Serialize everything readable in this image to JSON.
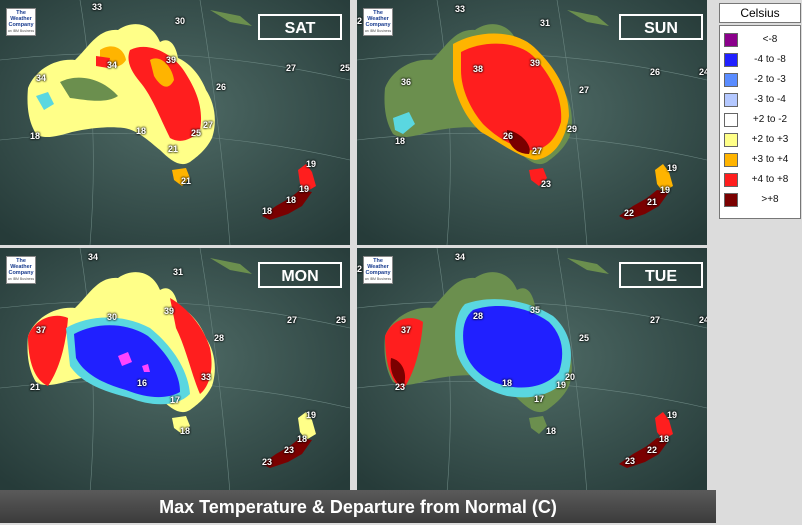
{
  "footer": {
    "title": "Max Temperature & Departure from Normal  (C)"
  },
  "legend": {
    "title": "Celsius",
    "items": [
      {
        "label": "<-8",
        "color": "#8b008b"
      },
      {
        "label": "-4 to -8",
        "color": "#2020ff"
      },
      {
        "label": "-2 to -3",
        "color": "#5a8cff"
      },
      {
        "label": "-3 to -4",
        "color": "#b4c8ff"
      },
      {
        "label": "+2 to -2",
        "color": "#ffffff"
      },
      {
        "label": "+2 to +3",
        "color": "#ffff88"
      },
      {
        "label": "+3 to +4",
        "color": "#ffb400"
      },
      {
        "label": "+4 to +8",
        "color": "#ff1e1e"
      },
      {
        "label": ">+8",
        "color": "#7a0000"
      }
    ]
  },
  "logo": {
    "line1": "The",
    "line2": "Weather",
    "line3": "Company",
    "line4": "an IBM Business"
  },
  "panels": [
    {
      "day": "SAT",
      "labels": [
        "33",
        "30",
        "34",
        "39",
        "26",
        "34",
        "27",
        "18",
        "18",
        "25",
        "21",
        "21",
        "27",
        "25",
        "19",
        "19",
        "18",
        "18"
      ]
    },
    {
      "day": "SUN",
      "labels": [
        "2",
        "33",
        "31",
        "38",
        "39",
        "26",
        "36",
        "27",
        "18",
        "26",
        "29",
        "24",
        "27",
        "23",
        "19",
        "19",
        "21",
        "22"
      ]
    },
    {
      "day": "MON",
      "labels": [
        "34",
        "31",
        "30",
        "39",
        "27",
        "25",
        "37",
        "28",
        "21",
        "16",
        "33",
        "17",
        "18",
        "19",
        "18",
        "23",
        "23"
      ]
    },
    {
      "day": "TUE",
      "labels": [
        "2",
        "34",
        "28",
        "35",
        "27",
        "24",
        "37",
        "25",
        "20",
        "23",
        "18",
        "19",
        "17",
        "18",
        "19",
        "18",
        "22",
        "23"
      ]
    }
  ]
}
